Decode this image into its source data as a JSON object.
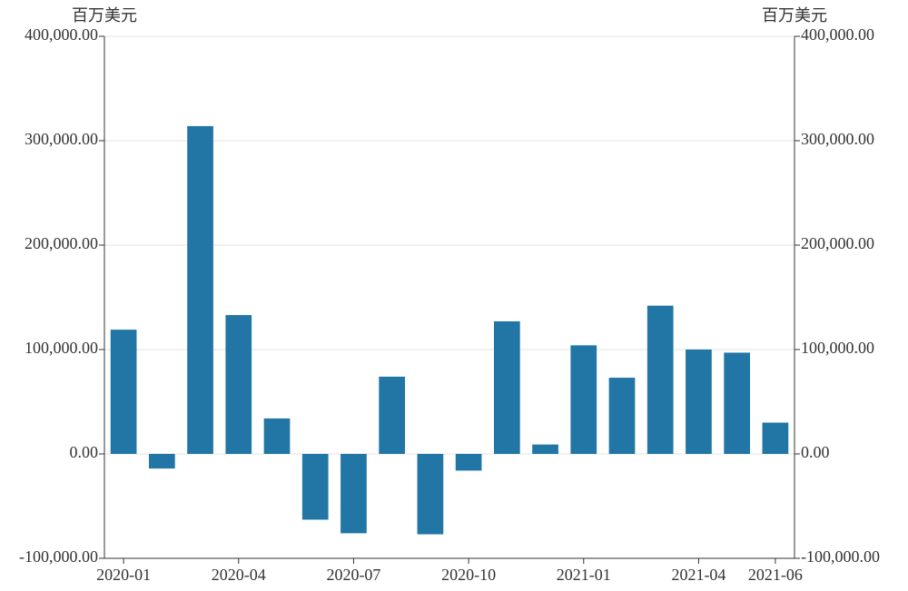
{
  "chart_data": {
    "type": "bar",
    "y_axis_label": "百万美元",
    "y2_axis_label": "百万美元",
    "categories": [
      "2020-01",
      null,
      null,
      "2020-04",
      null,
      null,
      "2020-07",
      null,
      null,
      "2020-10",
      null,
      null,
      "2021-01",
      null,
      null,
      "2021-04",
      null,
      "2021-06"
    ],
    "values": [
      119000,
      -14000,
      314000,
      133000,
      34000,
      -63000,
      -76000,
      74000,
      -77000,
      -16000,
      127000,
      9000,
      104000,
      73000,
      142000,
      100000,
      97000,
      30000
    ],
    "color": "#2176a5",
    "ylim": [
      -100000,
      400000
    ],
    "yticks": [
      {
        "value": -100000,
        "label": "-100,000.00"
      },
      {
        "value": 0,
        "label": "0.00"
      },
      {
        "value": 100000,
        "label": "100,000.00"
      },
      {
        "value": 200000,
        "label": "200,000.00"
      },
      {
        "value": 300000,
        "label": "300,000.00"
      },
      {
        "value": 400000,
        "label": "400,000.00"
      }
    ],
    "y2lim": [
      -100000,
      400000
    ],
    "y2ticks": [
      {
        "value": -100000,
        "label": "-100,000.00"
      },
      {
        "value": 0,
        "label": "0.00"
      },
      {
        "value": 100000,
        "label": "100,000.00"
      },
      {
        "value": 200000,
        "label": "200,000.00"
      },
      {
        "value": 300000,
        "label": "300,000.00"
      },
      {
        "value": 400000,
        "label": "400,000.00"
      }
    ],
    "grid": true
  }
}
